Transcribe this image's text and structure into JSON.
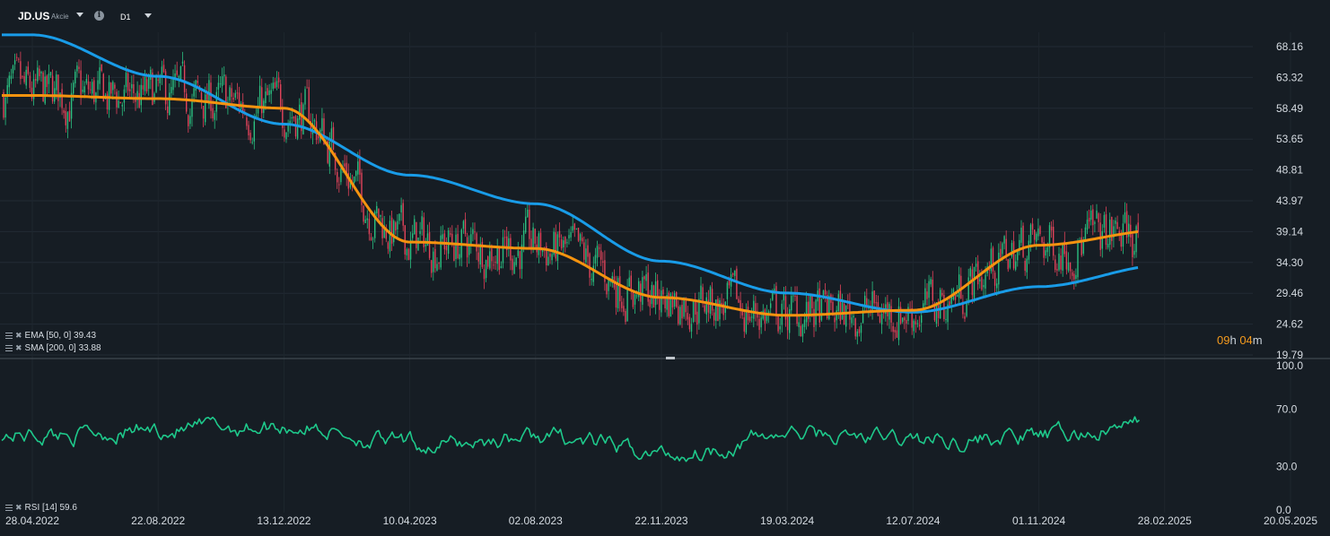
{
  "header": {
    "symbol": "JD.US",
    "symbol_type": "Akcie",
    "info_icon": "info-icon",
    "timeframe": "D1"
  },
  "colors": {
    "background": "#161d24",
    "ema_line": "#f5930f",
    "sma_line": "#199ce8",
    "rsi_line": "#1ec98b",
    "candle_up": "#2bbf80",
    "candle_down": "#e0435a",
    "countdown": "#f59b1d"
  },
  "price_axis": {
    "ticks": [
      "68.16",
      "63.32",
      "58.49",
      "53.65",
      "48.81",
      "43.97",
      "39.14",
      "34.30",
      "29.46",
      "24.62",
      "19.79"
    ],
    "range": [
      19.79,
      70.5
    ]
  },
  "rsi_axis": {
    "ticks": [
      "100.0",
      "70.0",
      "30.0",
      "0.0"
    ],
    "range": [
      0,
      100
    ]
  },
  "date_axis": {
    "ticks": [
      "28.04.2022",
      "22.08.2022",
      "13.12.2022",
      "10.04.2023",
      "02.08.2023",
      "22.11.2023",
      "19.03.2024",
      "12.07.2024",
      "01.11.2024",
      "28.02.2025",
      "20.05.2025"
    ]
  },
  "legends": {
    "ema": "EMA [50, 0] 39.43",
    "sma": "SMA [200, 0] 33.88",
    "rsi": "RSI [14] 59.6"
  },
  "countdown": {
    "hours": "09",
    "h_unit": "h",
    "minutes": "04",
    "m_unit": "m"
  },
  "chart_data": {
    "type": "line",
    "title": "JD.US",
    "series": [
      {
        "name": "EMA [50, 0]",
        "x": [
          "28.04.2022",
          "22.08.2022",
          "13.12.2022",
          "10.04.2023",
          "02.08.2023",
          "22.11.2023",
          "19.03.2024",
          "12.07.2024",
          "01.11.2024",
          "28.02.2025"
        ],
        "values": [
          60.5,
          60.0,
          58.5,
          37.5,
          36.5,
          28.8,
          26.0,
          26.8,
          37.0,
          39.4
        ]
      },
      {
        "name": "SMA [200, 0]",
        "x": [
          "28.04.2022",
          "22.08.2022",
          "13.12.2022",
          "10.04.2023",
          "02.08.2023",
          "22.11.2023",
          "19.03.2024",
          "12.07.2024",
          "01.11.2024",
          "28.02.2025"
        ],
        "values": [
          70.0,
          63.5,
          56.0,
          48.0,
          43.5,
          34.5,
          29.5,
          26.5,
          30.5,
          33.9
        ]
      },
      {
        "name": "RSI [14]",
        "x": [
          "28.04.2022",
          "22.08.2022",
          "13.12.2022",
          "10.04.2023",
          "02.08.2023",
          "22.11.2023",
          "19.03.2024",
          "12.07.2024",
          "01.11.2024",
          "28.02.2025"
        ],
        "values": [
          52,
          55,
          58,
          44,
          50,
          38,
          52,
          48,
          50,
          59.6
        ]
      }
    ],
    "ylim": [
      19.79,
      68.16
    ],
    "rsi_ylim": [
      0,
      100
    ],
    "grid": true
  }
}
